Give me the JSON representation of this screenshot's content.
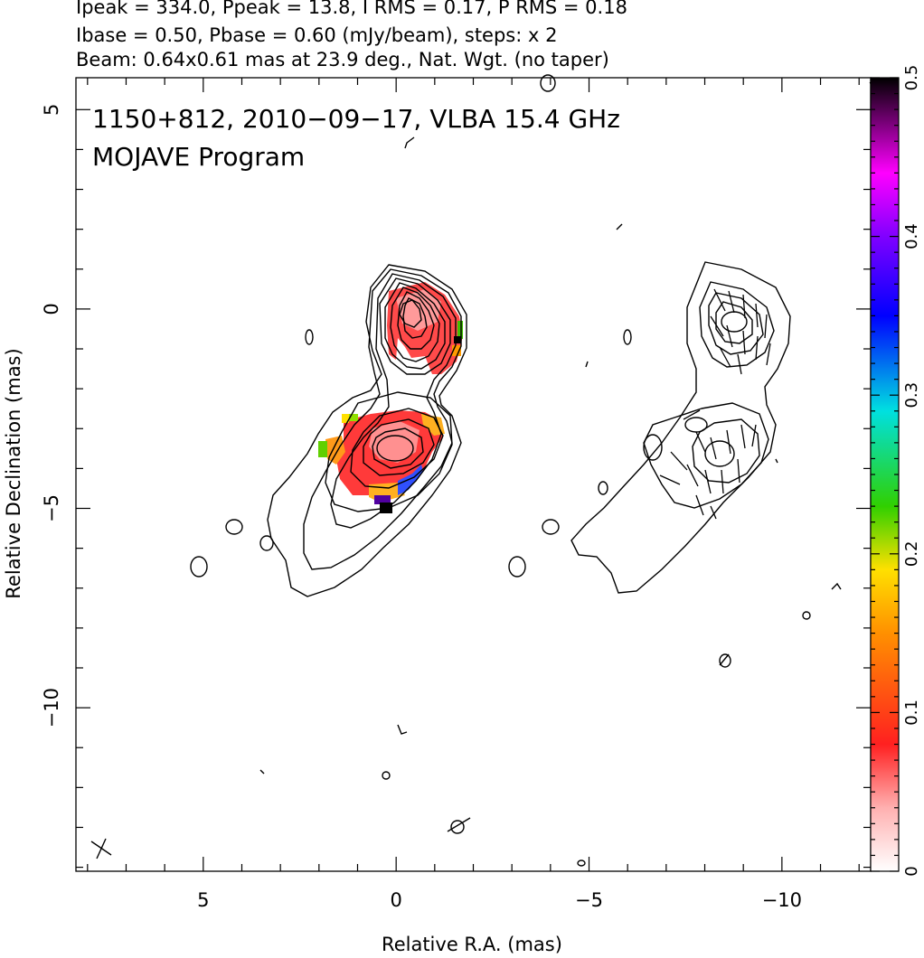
{
  "header": {
    "line1": "Ipeak = 334.0, Ppeak = 13.8, I RMS = 0.17, P RMS = 0.18",
    "line2": "Ibase = 0.50, Pbase = 0.60 (mJy/beam), steps: x 2",
    "line3": "Beam: 0.64x0.61 mas at 23.9 deg., Nat. Wgt. (no taper)"
  },
  "chart_data": {
    "type": "heatmap",
    "source_label": "1150+812, 2010−09−17, VLBA 15.4 GHz",
    "program_label": "MOJAVE Program",
    "xlabel": "Relative R.A. (mas)",
    "ylabel": "Relative Declination (mas)",
    "xlim": [
      8.3,
      -12.3
    ],
    "ylim": [
      -14.1,
      5.8
    ],
    "x_ticks": [
      {
        "v": 5,
        "t": "5"
      },
      {
        "v": 0,
        "t": "0"
      },
      {
        "v": -5,
        "t": "−5"
      },
      {
        "v": -10,
        "t": "−10"
      }
    ],
    "y_ticks": [
      {
        "v": 5,
        "t": "5"
      },
      {
        "v": 0,
        "t": "0"
      },
      {
        "v": -5,
        "t": "−5"
      },
      {
        "v": -10,
        "t": "−10"
      }
    ],
    "colorbar": {
      "range": [
        0,
        0.5
      ],
      "ticks": [
        {
          "v": 0,
          "t": "0"
        },
        {
          "v": 0.1,
          "t": "0.1"
        },
        {
          "v": 0.2,
          "t": "0.2"
        },
        {
          "v": 0.3,
          "t": "0.3"
        },
        {
          "v": 0.4,
          "t": "0.4"
        },
        {
          "v": 0.5,
          "t": "0.5"
        }
      ]
    },
    "beam": {
      "major_mas": 0.64,
      "minor_mas": 0.61,
      "pa_deg": 23.9
    },
    "grid": false,
    "colors": {
      "frac_low": "#ff4040",
      "frac_mid": "#ffa500",
      "frac_high": "#00c000",
      "max": "#000000"
    }
  }
}
